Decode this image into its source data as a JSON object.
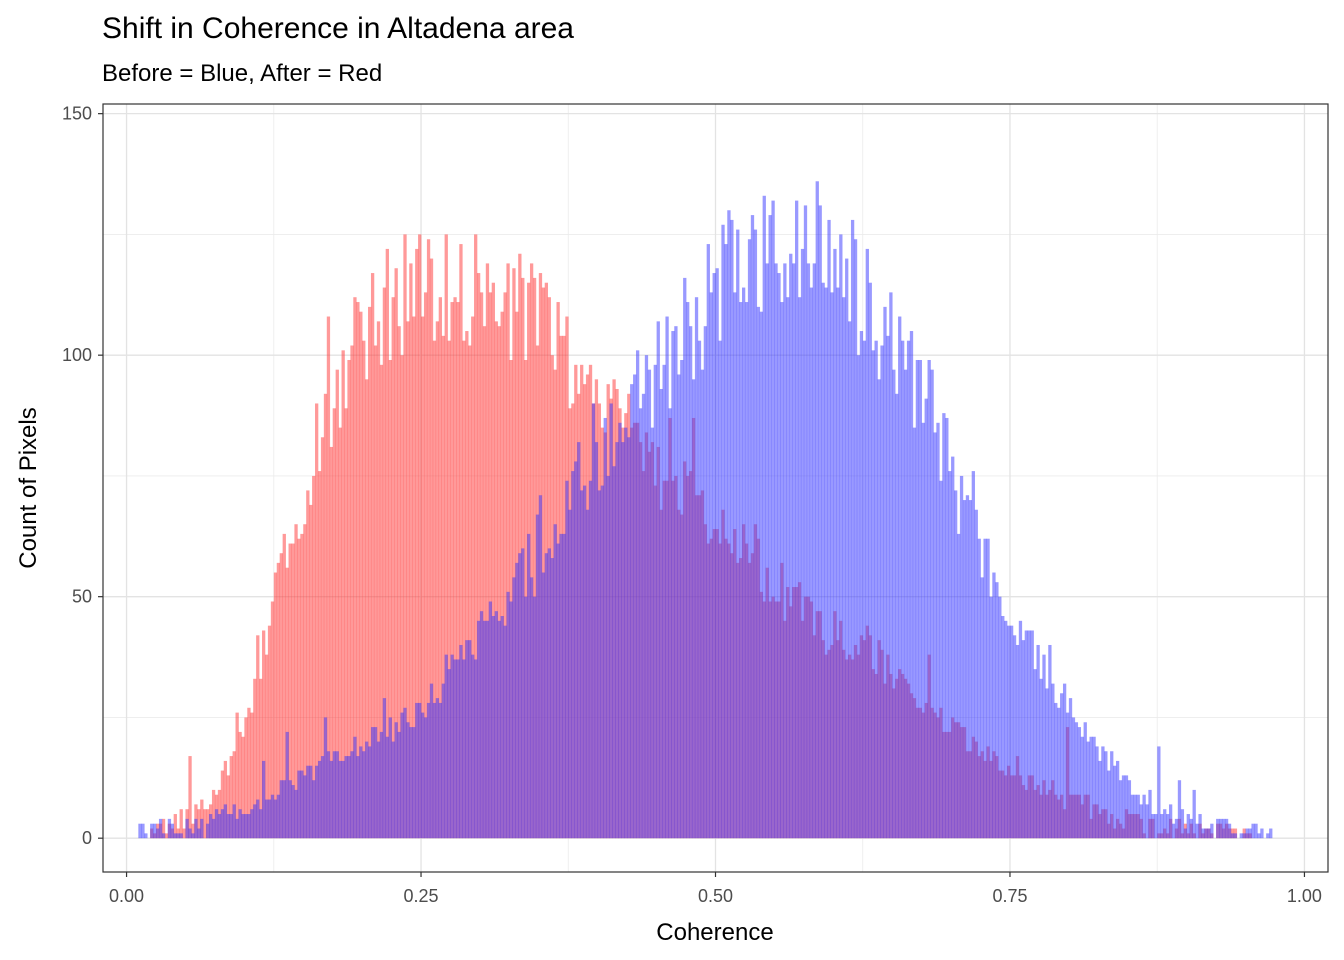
{
  "chart_data": {
    "type": "histogram",
    "title": "Shift in Coherence in Altadena area",
    "subtitle": "Before = Blue, After = Red",
    "xlabel": "Coherence",
    "ylabel": "Count of Pixels",
    "xlim": [
      -0.02,
      1.02
    ],
    "ylim": [
      -7,
      152
    ],
    "x_ticks": [
      "0.00",
      "0.25",
      "0.50",
      "0.75",
      "1.00"
    ],
    "y_ticks": [
      "0",
      "50",
      "100",
      "150"
    ],
    "grid": true,
    "bin_width": 0.0025,
    "series": [
      {
        "color": "#ff3333",
        "opacity": 0.5,
        "profile": [
          [
            0.02,
            1
          ],
          [
            0.05,
            4
          ],
          [
            0.07,
            8
          ],
          [
            0.09,
            16
          ],
          [
            0.1,
            24
          ],
          [
            0.11,
            33
          ],
          [
            0.12,
            42
          ],
          [
            0.13,
            54
          ],
          [
            0.14,
            62
          ],
          [
            0.15,
            71
          ],
          [
            0.16,
            79
          ],
          [
            0.17,
            87
          ],
          [
            0.18,
            93
          ],
          [
            0.19,
            97
          ],
          [
            0.2,
            103
          ],
          [
            0.21,
            108
          ],
          [
            0.22,
            111
          ],
          [
            0.23,
            112
          ],
          [
            0.24,
            113
          ],
          [
            0.26,
            114
          ],
          [
            0.28,
            114
          ],
          [
            0.3,
            112
          ],
          [
            0.32,
            110
          ],
          [
            0.34,
            107
          ],
          [
            0.36,
            103
          ],
          [
            0.38,
            96
          ],
          [
            0.4,
            90
          ],
          [
            0.42,
            84
          ],
          [
            0.44,
            78
          ],
          [
            0.46,
            73
          ],
          [
            0.48,
            68
          ],
          [
            0.5,
            64
          ],
          [
            0.52,
            60
          ],
          [
            0.54,
            55
          ],
          [
            0.56,
            50
          ],
          [
            0.58,
            46
          ],
          [
            0.6,
            42
          ],
          [
            0.62,
            40
          ],
          [
            0.64,
            37
          ],
          [
            0.66,
            33
          ],
          [
            0.68,
            28
          ],
          [
            0.7,
            23
          ],
          [
            0.72,
            19
          ],
          [
            0.74,
            16
          ],
          [
            0.76,
            13
          ],
          [
            0.78,
            10
          ],
          [
            0.8,
            8
          ],
          [
            0.82,
            6
          ],
          [
            0.84,
            4
          ],
          [
            0.86,
            3
          ],
          [
            0.88,
            2
          ],
          [
            0.9,
            1.5
          ],
          [
            0.93,
            1
          ],
          [
            0.95,
            0.5
          ],
          [
            0.96,
            0
          ]
        ]
      },
      {
        "color": "#3333ff",
        "opacity": 0.5,
        "profile": [
          [
            0.01,
            1
          ],
          [
            0.05,
            2
          ],
          [
            0.07,
            3
          ],
          [
            0.1,
            6
          ],
          [
            0.12,
            8
          ],
          [
            0.14,
            11
          ],
          [
            0.16,
            14
          ],
          [
            0.18,
            17
          ],
          [
            0.2,
            19
          ],
          [
            0.22,
            22
          ],
          [
            0.24,
            25
          ],
          [
            0.26,
            30
          ],
          [
            0.28,
            36
          ],
          [
            0.3,
            42
          ],
          [
            0.32,
            48
          ],
          [
            0.34,
            55
          ],
          [
            0.36,
            62
          ],
          [
            0.38,
            70
          ],
          [
            0.4,
            80
          ],
          [
            0.42,
            88
          ],
          [
            0.44,
            93
          ],
          [
            0.46,
            100
          ],
          [
            0.48,
            107
          ],
          [
            0.5,
            112
          ],
          [
            0.52,
            118
          ],
          [
            0.54,
            122
          ],
          [
            0.56,
            123
          ],
          [
            0.58,
            123
          ],
          [
            0.6,
            120
          ],
          [
            0.62,
            114
          ],
          [
            0.64,
            105
          ],
          [
            0.66,
            98
          ],
          [
            0.68,
            90
          ],
          [
            0.7,
            75
          ],
          [
            0.72,
            63
          ],
          [
            0.74,
            52
          ],
          [
            0.76,
            43
          ],
          [
            0.78,
            35
          ],
          [
            0.8,
            27
          ],
          [
            0.82,
            20
          ],
          [
            0.84,
            14
          ],
          [
            0.86,
            9
          ],
          [
            0.88,
            6
          ],
          [
            0.9,
            4
          ],
          [
            0.93,
            2
          ],
          [
            0.96,
            1
          ],
          [
            0.975,
            0
          ]
        ]
      }
    ]
  }
}
